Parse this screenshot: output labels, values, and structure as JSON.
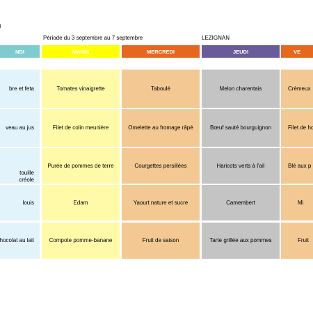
{
  "corner_mark": "ı",
  "period": "Période du 3 septembre au 7 septembre",
  "location": "LEZIGNAN",
  "days": [
    "NDI",
    "MARDI",
    "MERCREDI",
    "JEUDI",
    "VE"
  ],
  "colors": {
    "lundi_header": "#7fcccf",
    "mardi_header": "#ffff00",
    "mercredi_header": "#e8671f",
    "jeudi_header": "#6a5c9a",
    "vendredi_header": "#e8671f",
    "lundi_cell": "#e3f3fb",
    "mardi_cell": "#fffaa8",
    "mercredi_cell": "#f3c893",
    "jeudi_cell": "#c4c4c4",
    "vendredi_cell": "#f3c893"
  },
  "rows": [
    {
      "lundi": [
        "bre et feta"
      ],
      "mardi": [
        "Tomates vinaigrette"
      ],
      "mercredi": [
        "Taboulé"
      ],
      "jeudi": [
        "Melon charentais"
      ],
      "vendredi": [
        "Crèmeux"
      ]
    },
    {
      "lundi": [
        "veau au jus"
      ],
      "mardi": [
        "Filet de colin meunière"
      ],
      "mercredi": [
        "Omelette au fromage râpé"
      ],
      "jeudi": [
        "Bœuf sauté bourguignon"
      ],
      "vendredi": [
        "Filet de ho"
      ]
    },
    {
      "lundi": [
        "touille",
        "créole"
      ],
      "mardi": [
        "Purée de pommes de terre"
      ],
      "mercredi": [
        "Courgettes persillées"
      ],
      "jeudi": [
        "Haricots verts à l'ail"
      ],
      "vendredi": [
        "Blé aux p"
      ]
    },
    {
      "lundi": [
        "louis"
      ],
      "mardi": [
        "Edam"
      ],
      "mercredi": [
        "Yaourt nature et sucre"
      ],
      "jeudi": [
        "Camembert"
      ],
      "vendredi": [
        "Mi"
      ]
    },
    {
      "lundi": [
        "hocolat au lait"
      ],
      "mardi": [
        "Compote pomme-banane"
      ],
      "mercredi": [
        "Fruit de saison"
      ],
      "jeudi": [
        "Tarte grillée aux pommes"
      ],
      "vendredi": [
        "Fruit"
      ]
    }
  ]
}
